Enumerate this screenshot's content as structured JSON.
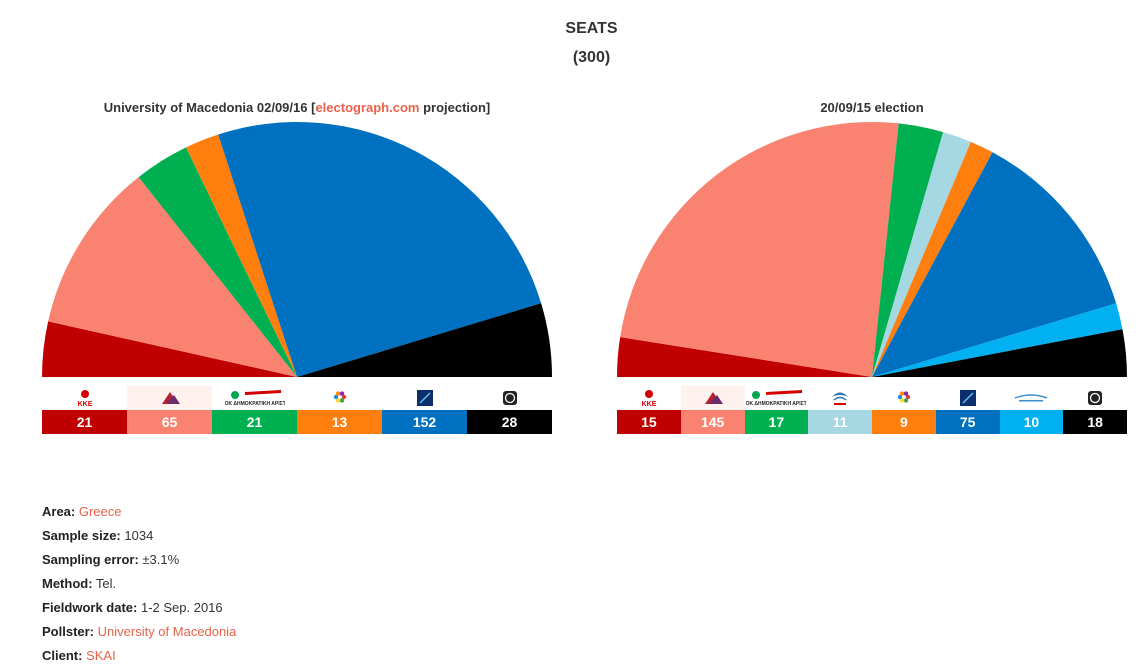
{
  "title": "SEATS",
  "subtitle": "(300)",
  "chart_data": [
    {
      "type": "pie",
      "title_prefix": "University of Macedonia 02/09/16 [",
      "title_link": "electograph.com",
      "title_suffix": " projection]",
      "categories": [
        "KKE",
        "SYRIZA",
        "PASOK-DIMAR",
        "Union of Centrists",
        "ND",
        "Golden Dawn"
      ],
      "values": [
        21,
        65,
        21,
        13,
        152,
        28
      ],
      "colors": [
        "#c00000",
        "#f98270",
        "#00b050",
        "#ff7f0e",
        "#0070c0",
        "#000000"
      ],
      "label_colors": [
        "#ffffff",
        "#fff2ee",
        "#ffffff",
        "#ffffff",
        "#ffffff",
        "#ffffff"
      ],
      "logo_icons": [
        "kke-logo",
        "syriza-logo",
        "pasok-dimar-logo",
        "union-centrists-logo",
        "nd-logo",
        "golden-dawn-logo"
      ],
      "logo_texts": [
        "KKE",
        "",
        "ΠΑΣΟΚ ΔΗΜΟΚΡΑΤΙΚΗ ΑΡΙΣΤΕΡΑ",
        "",
        "",
        ""
      ]
    },
    {
      "type": "pie",
      "title_prefix": "20/09/15 election",
      "title_link": "",
      "title_suffix": "",
      "categories": [
        "KKE",
        "SYRIZA",
        "PASOK-DIMAR",
        "Potami",
        "Union of Centrists",
        "ND",
        "ANEL",
        "Golden Dawn"
      ],
      "values": [
        15,
        145,
        17,
        11,
        9,
        75,
        10,
        18
      ],
      "colors": [
        "#c00000",
        "#f98270",
        "#00b050",
        "#a6d8e4",
        "#ff7f0e",
        "#0070c0",
        "#00b0f0",
        "#000000"
      ],
      "label_colors": [
        "#ffffff",
        "#fff2ee",
        "#ffffff",
        "#ffffff",
        "#ffffff",
        "#ffffff",
        "#ffffff",
        "#ffffff"
      ],
      "logo_icons": [
        "kke-logo",
        "syriza-logo",
        "pasok-dimar-logo",
        "potami-logo",
        "union-centrists-logo",
        "nd-logo",
        "anel-logo",
        "golden-dawn-logo"
      ],
      "logo_texts": [
        "KKE",
        "",
        "ΠΑΣΟΚ ΔΗΜΟΚΡΑΤΙΚΗ ΑΡΙΣΤΕΡΑ",
        "",
        "",
        "",
        "",
        ""
      ]
    }
  ],
  "info": [
    {
      "label": "Area:",
      "value": "Greece",
      "link": true
    },
    {
      "label": "Sample size:",
      "value": "1034",
      "link": false
    },
    {
      "label": "Sampling error:",
      "value": "±3.1%",
      "link": false
    },
    {
      "label": "Method:",
      "value": "Tel.",
      "link": false
    },
    {
      "label": "Fieldwork date:",
      "value": "1-2 Sep. 2016",
      "link": false
    },
    {
      "label": "Pollster:",
      "value": "University of Macedonia",
      "link": true
    },
    {
      "label": "Client:",
      "value": "SKAI",
      "link": true
    }
  ]
}
